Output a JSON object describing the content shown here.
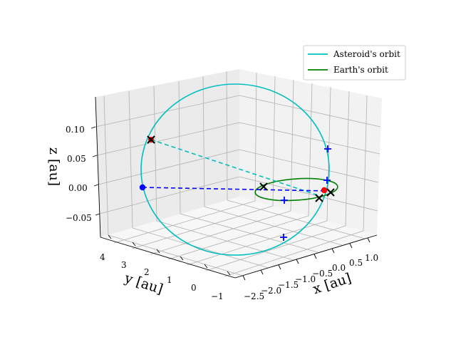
{
  "chart_data": {
    "type": "scatter3d",
    "title": "",
    "xlabel": "x [au]",
    "ylabel": "y [au]",
    "zlabel": "z [au]",
    "x_ticks": [
      "−2.5",
      "−2.0",
      "−1.5",
      "−1.0",
      "−0.5",
      "0.0",
      "0.5",
      "1.0"
    ],
    "y_ticks": [
      "−1",
      "0",
      "1",
      "2",
      "3",
      "4"
    ],
    "z_ticks": [
      "0.10",
      "0.05",
      "0.00",
      "−0.05"
    ],
    "xlim": [
      -2.6,
      1.3
    ],
    "ylim": [
      -1.3,
      4.3
    ],
    "zlim": [
      -0.09,
      0.14
    ],
    "grid": true,
    "legend_position": "top-right",
    "series": [
      {
        "name": "Asteroid's orbit",
        "kind": "line",
        "color": "#00bfbf"
      },
      {
        "name": "Earth's orbit",
        "kind": "line",
        "color": "#008000"
      },
      {
        "name": "Asteroid line of sight",
        "kind": "dashed-line",
        "color": "#00bfbf"
      },
      {
        "name": "Projection line",
        "kind": "dashed-line",
        "color": "#0000ff"
      },
      {
        "name": "Points of interest",
        "kind": "points",
        "color": "#0000ff"
      }
    ],
    "legend": [
      "Asteroid's orbit",
      "Earth's orbit"
    ],
    "colors": {
      "asteroid": "#00bfbf",
      "earth": "#008000",
      "marker_blue": "#0000ff",
      "marker_red": "#ff0000",
      "marker_black": "#000000",
      "pane_left": "#ebebeb",
      "pane_right": "#f2f2f2",
      "pane_floor": "#f7f7f7",
      "grid": "#b0b0b0"
    }
  }
}
